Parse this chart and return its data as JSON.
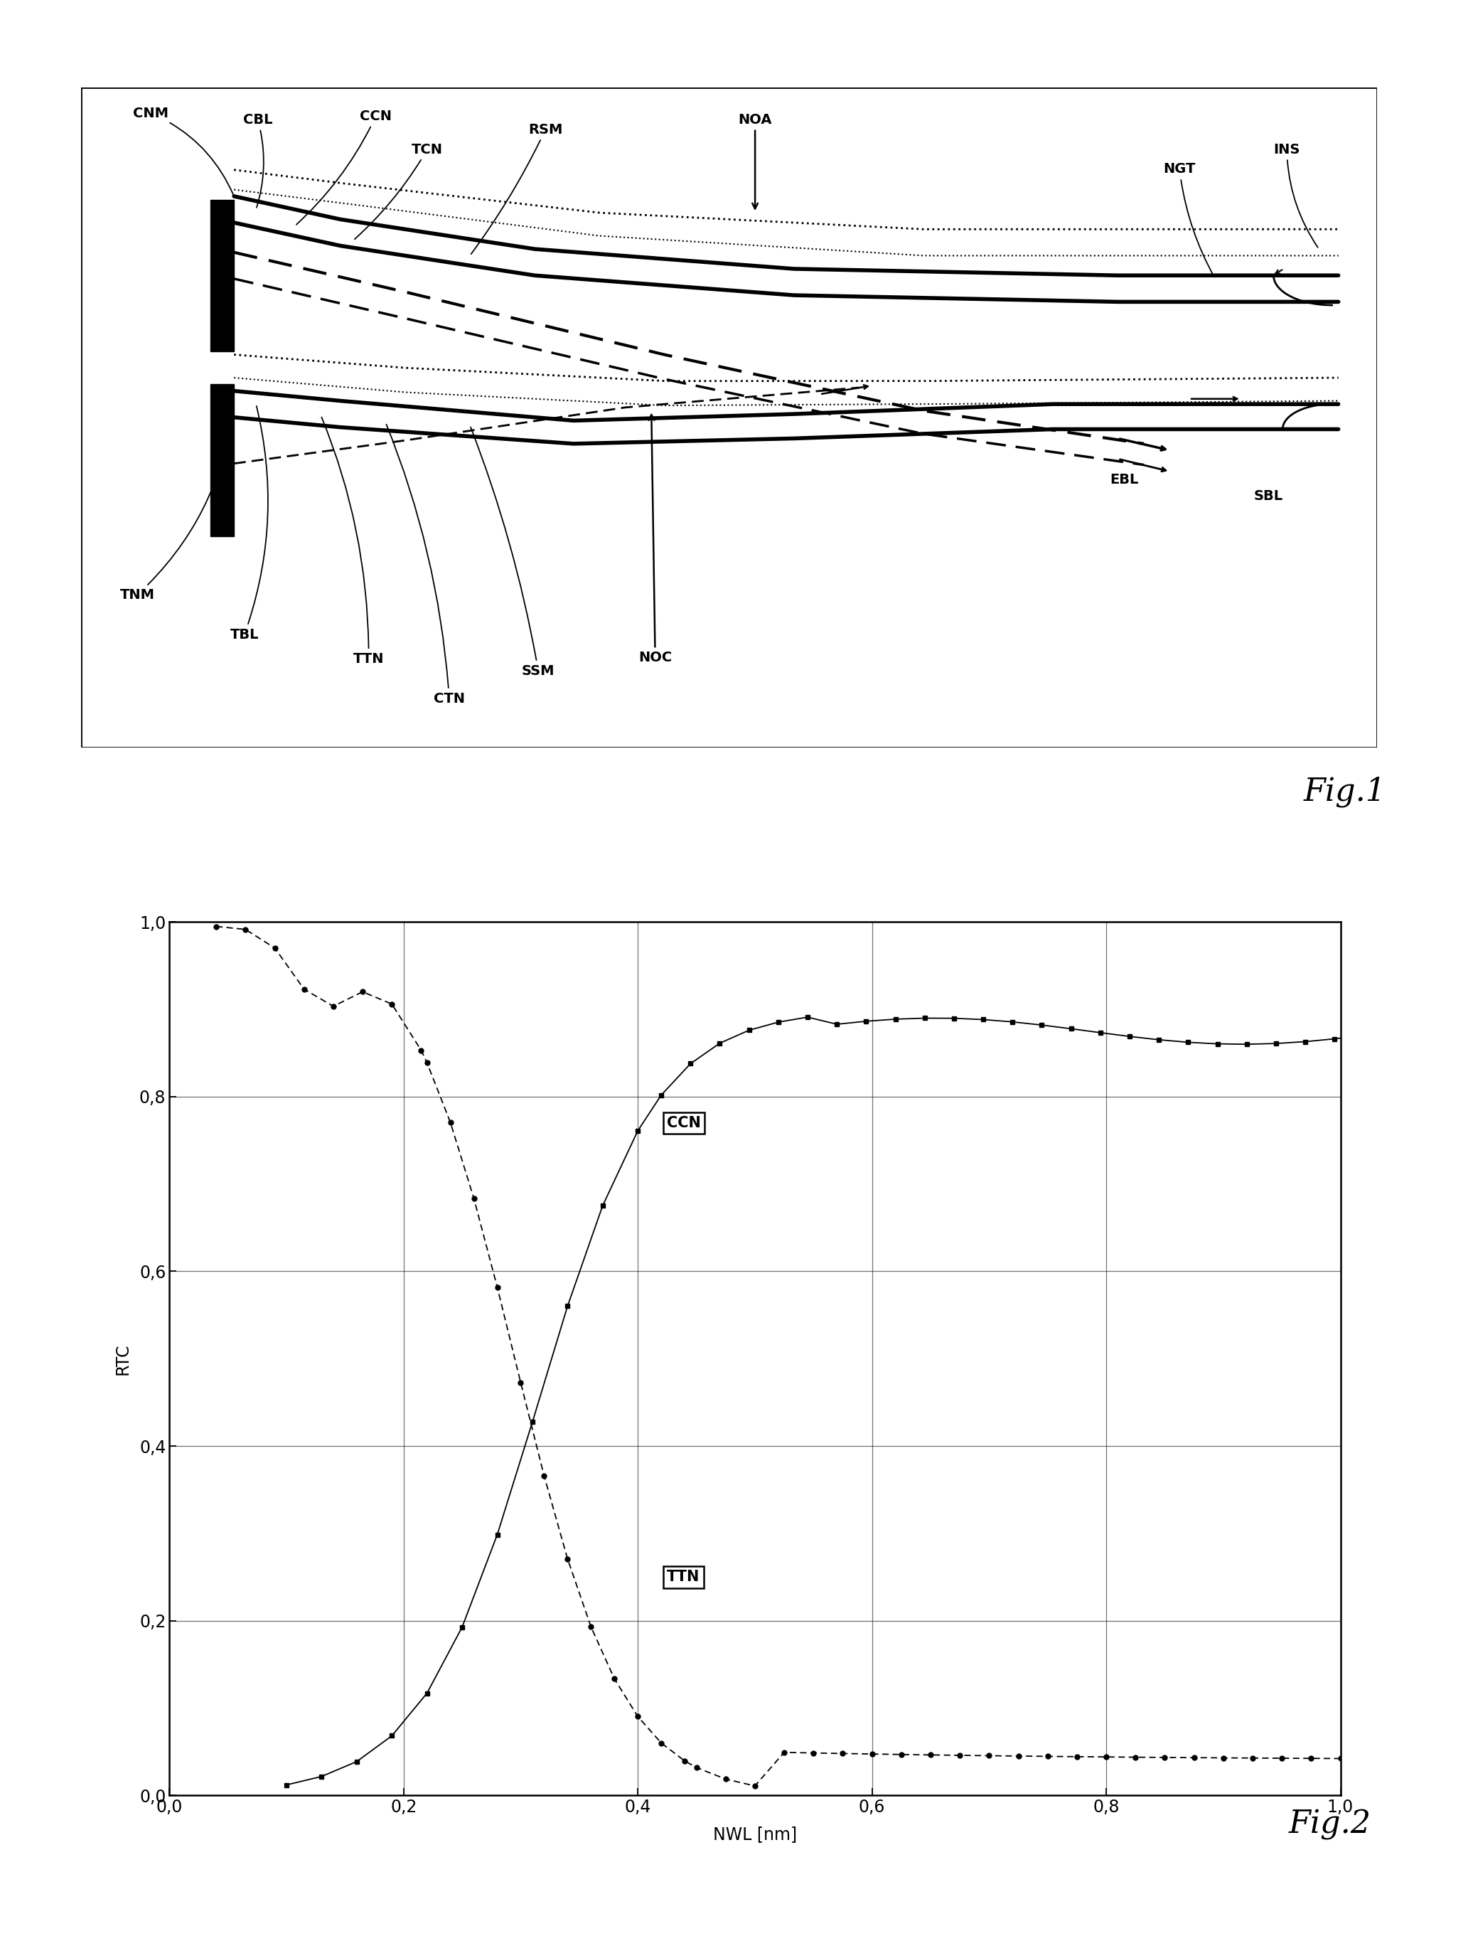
{
  "fig2_xlabel": "NWL [nm]",
  "fig2_ylabel": "RTC",
  "fig2_title": "Fig.2",
  "fig1_title": "Fig.1",
  "ccn_label": "CCN",
  "ttn_label": "TTN",
  "bg_color": "#ffffff"
}
